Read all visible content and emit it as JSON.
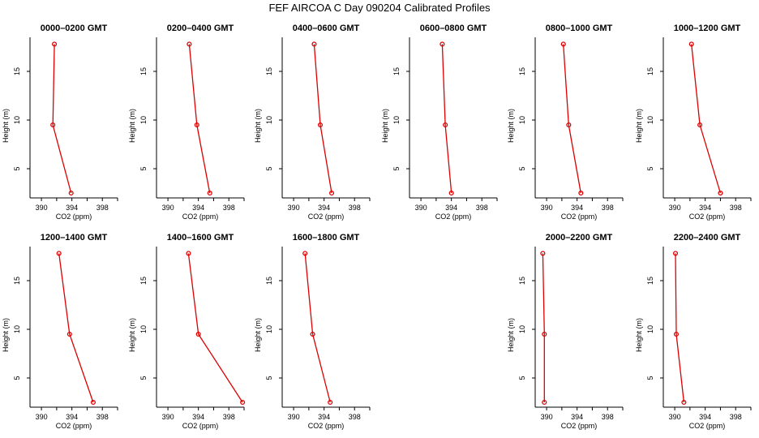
{
  "title": "FEF AIRCOA C  Day 090204  Calibrated Profiles",
  "colors": {
    "series": "#dd0000",
    "axis": "#000000",
    "background": "#ffffff"
  },
  "chart_data": [
    {
      "type": "line",
      "title": "0000–0200 GMT",
      "xlabel": "CO2 (ppm)",
      "ylabel": "Height (m)",
      "xlim": [
        388.5,
        400
      ],
      "ylim": [
        2,
        18.5
      ],
      "xticks": [
        390,
        394,
        398
      ],
      "yticks": [
        5,
        10,
        15
      ],
      "x": [
        391.7,
        391.5,
        393.9
      ],
      "y": [
        17.8,
        9.5,
        2.5
      ]
    },
    {
      "type": "line",
      "title": "0200–0400 GMT",
      "xlabel": "CO2 (ppm)",
      "ylabel": "Height (m)",
      "xlim": [
        388.5,
        400
      ],
      "ylim": [
        2,
        18.5
      ],
      "xticks": [
        390,
        394,
        398
      ],
      "yticks": [
        5,
        10,
        15
      ],
      "x": [
        392.8,
        393.8,
        395.5
      ],
      "y": [
        17.8,
        9.5,
        2.5
      ]
    },
    {
      "type": "line",
      "title": "0400–0600 GMT",
      "xlabel": "CO2 (ppm)",
      "ylabel": "Height (m)",
      "xlim": [
        388.5,
        400
      ],
      "ylim": [
        2,
        18.5
      ],
      "xticks": [
        390,
        394,
        398
      ],
      "yticks": [
        5,
        10,
        15
      ],
      "x": [
        392.7,
        393.5,
        395.0
      ],
      "y": [
        17.8,
        9.5,
        2.5
      ]
    },
    {
      "type": "line",
      "title": "0600–0800 GMT",
      "xlabel": "CO2 (ppm)",
      "ylabel": "Height (m)",
      "xlim": [
        388.5,
        400
      ],
      "ylim": [
        2,
        18.5
      ],
      "xticks": [
        390,
        394,
        398
      ],
      "yticks": [
        5,
        10,
        15
      ],
      "x": [
        392.8,
        393.2,
        394.0
      ],
      "y": [
        17.8,
        9.5,
        2.5
      ]
    },
    {
      "type": "line",
      "title": "0800–1000 GMT",
      "xlabel": "CO2 (ppm)",
      "ylabel": "Height (m)",
      "xlim": [
        388.5,
        400
      ],
      "ylim": [
        2,
        18.5
      ],
      "xticks": [
        390,
        394,
        398
      ],
      "yticks": [
        5,
        10,
        15
      ],
      "x": [
        392.2,
        392.9,
        394.5
      ],
      "y": [
        17.8,
        9.5,
        2.5
      ]
    },
    {
      "type": "line",
      "title": "1000–1200 GMT",
      "xlabel": "CO2 (ppm)",
      "ylabel": "Height (m)",
      "xlim": [
        388.5,
        400
      ],
      "ylim": [
        2,
        18.5
      ],
      "xticks": [
        390,
        394,
        398
      ],
      "yticks": [
        5,
        10,
        15
      ],
      "x": [
        392.2,
        393.3,
        396.0
      ],
      "y": [
        17.8,
        9.5,
        2.5
      ]
    },
    {
      "type": "line",
      "title": "1200–1400 GMT",
      "xlabel": "CO2 (ppm)",
      "ylabel": "Height (m)",
      "xlim": [
        388.5,
        400
      ],
      "ylim": [
        2,
        18.5
      ],
      "xticks": [
        390,
        394,
        398
      ],
      "yticks": [
        5,
        10,
        15
      ],
      "x": [
        392.3,
        393.7,
        396.8
      ],
      "y": [
        17.8,
        9.5,
        2.5
      ]
    },
    {
      "type": "line",
      "title": "1400–1600 GMT",
      "xlabel": "CO2 (ppm)",
      "ylabel": "Height (m)",
      "xlim": [
        388.5,
        400
      ],
      "ylim": [
        2,
        18.5
      ],
      "xticks": [
        390,
        394,
        398
      ],
      "yticks": [
        5,
        10,
        15
      ],
      "x": [
        392.7,
        394.0,
        399.8
      ],
      "y": [
        17.8,
        9.5,
        2.5
      ]
    },
    {
      "type": "line",
      "title": "1600–1800 GMT",
      "xlabel": "CO2 (ppm)",
      "ylabel": "Height (m)",
      "xlim": [
        388.5,
        400
      ],
      "ylim": [
        2,
        18.5
      ],
      "xticks": [
        390,
        394,
        398
      ],
      "yticks": [
        5,
        10,
        15
      ],
      "x": [
        391.5,
        392.5,
        394.8
      ],
      "y": [
        17.8,
        9.5,
        2.5
      ]
    },
    null,
    {
      "type": "line",
      "title": "2000–2200 GMT",
      "xlabel": "CO2 (ppm)",
      "ylabel": "Height (m)",
      "xlim": [
        388.5,
        400
      ],
      "ylim": [
        2,
        18.5
      ],
      "xticks": [
        390,
        394,
        398
      ],
      "yticks": [
        5,
        10,
        15
      ],
      "x": [
        389.5,
        389.7,
        389.7
      ],
      "y": [
        17.8,
        9.5,
        2.5
      ]
    },
    {
      "type": "line",
      "title": "2200–2400 GMT",
      "xlabel": "CO2 (ppm)",
      "ylabel": "Height (m)",
      "xlim": [
        388.5,
        400
      ],
      "ylim": [
        2,
        18.5
      ],
      "xticks": [
        390,
        394,
        398
      ],
      "yticks": [
        5,
        10,
        15
      ],
      "x": [
        390.1,
        390.2,
        391.2
      ],
      "y": [
        17.8,
        9.5,
        2.5
      ]
    }
  ]
}
